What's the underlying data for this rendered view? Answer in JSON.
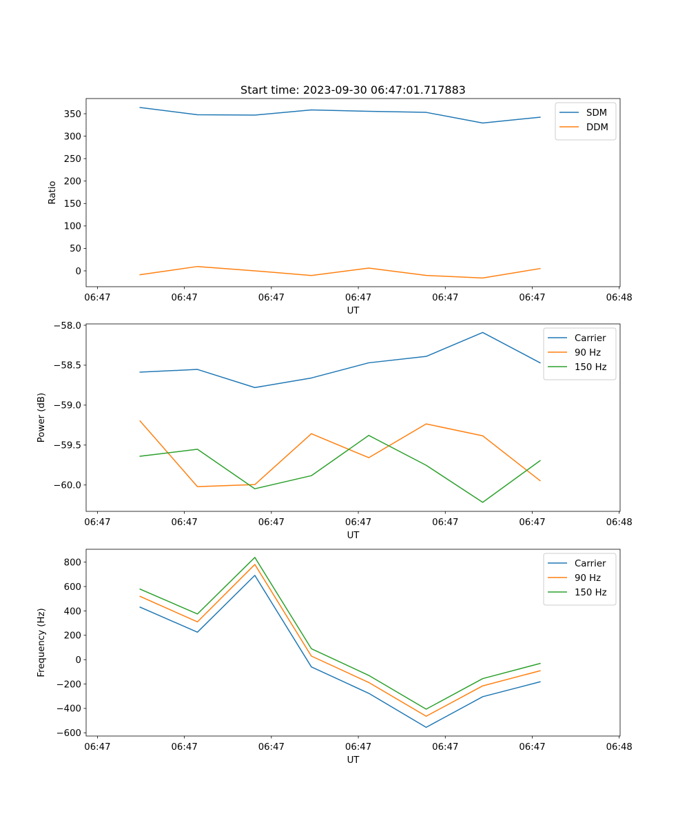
{
  "chart_data": [
    {
      "type": "line",
      "title": "Start time: 2023-09-30 06:47:01.717883",
      "xlabel": "UT",
      "ylabel": "Ratio",
      "x_unit": "seconds after 06:47:00",
      "x": [
        4.9,
        11.5,
        18.1,
        24.6,
        31.2,
        37.8,
        44.3,
        50.9
      ],
      "xlim": [
        -1.3,
        60.1
      ],
      "x_ticks": [
        0,
        10,
        20,
        30,
        40,
        50,
        60
      ],
      "x_tick_labels": [
        "06:47",
        "06:47",
        "06:47",
        "06:47",
        "06:47",
        "06:47",
        "06:48"
      ],
      "ylim": [
        -35.3,
        383.8
      ],
      "y_ticks": [
        0,
        50,
        100,
        150,
        200,
        250,
        300,
        350
      ],
      "y_tick_labels": [
        "0",
        "50",
        "100",
        "150",
        "200",
        "250",
        "300",
        "350"
      ],
      "grid": false,
      "legend": "top-right",
      "series": [
        {
          "name": "SDM",
          "color": "#1f77b4",
          "values": [
            363.8,
            347.7,
            347.0,
            358.5,
            355.4,
            353.0,
            329.3,
            342.3
          ]
        },
        {
          "name": "DDM",
          "color": "#ff7f0e",
          "values": [
            -8.7,
            9.7,
            0.0,
            -10.3,
            6.1,
            -10.2,
            -15.9,
            5.1
          ]
        }
      ]
    },
    {
      "type": "line",
      "title": "",
      "xlabel": "UT",
      "ylabel": "Power (dB)",
      "x_unit": "seconds after 06:47:00",
      "x": [
        4.9,
        11.5,
        18.1,
        24.6,
        31.2,
        37.8,
        44.3,
        50.9
      ],
      "xlim": [
        -1.3,
        60.1
      ],
      "x_ticks": [
        0,
        10,
        20,
        30,
        40,
        50,
        60
      ],
      "x_tick_labels": [
        "06:47",
        "06:47",
        "06:47",
        "06:47",
        "06:47",
        "06:47",
        "06:48"
      ],
      "ylim": [
        -60.33,
        -57.983
      ],
      "y_ticks": [
        -60.0,
        -59.5,
        -59.0,
        -58.5,
        -58.0
      ],
      "y_tick_labels": [
        "−60.0",
        "−59.5",
        "−59.0",
        "−58.5",
        "−58.0"
      ],
      "grid": false,
      "legend": "top-right",
      "series": [
        {
          "name": "Carrier",
          "color": "#1f77b4",
          "values": [
            -58.587,
            -58.553,
            -58.78,
            -58.66,
            -58.47,
            -58.39,
            -58.09,
            -58.47
          ]
        },
        {
          "name": "90 Hz",
          "color": "#ff7f0e",
          "values": [
            -59.198,
            -60.02,
            -59.995,
            -59.358,
            -59.658,
            -59.235,
            -59.384,
            -59.946
          ]
        },
        {
          "name": "150 Hz",
          "color": "#2ca02c",
          "values": [
            -59.64,
            -59.552,
            -60.047,
            -59.883,
            -59.379,
            -59.753,
            -60.217,
            -59.695
          ]
        }
      ]
    },
    {
      "type": "line",
      "title": "",
      "xlabel": "UT",
      "ylabel": "Frequency (Hz)",
      "x_unit": "seconds after 06:47:00",
      "x": [
        4.9,
        11.5,
        18.1,
        24.6,
        31.2,
        37.8,
        44.3,
        50.9
      ],
      "xlim": [
        -1.3,
        60.1
      ],
      "x_ticks": [
        0,
        10,
        20,
        30,
        40,
        50,
        60
      ],
      "x_tick_labels": [
        "06:47",
        "06:47",
        "06:47",
        "06:47",
        "06:47",
        "06:47",
        "06:48"
      ],
      "ylim": [
        -626.5,
        905.8
      ],
      "y_ticks": [
        -600,
        -400,
        -200,
        0,
        200,
        400,
        600,
        800
      ],
      "y_tick_labels": [
        "−600",
        "−400",
        "−200",
        "0",
        "200",
        "400",
        "600",
        "800"
      ],
      "grid": false,
      "legend": "top-right",
      "series": [
        {
          "name": "Carrier",
          "color": "#1f77b4",
          "values": [
            431,
            225.6,
            691.5,
            -59.4,
            -276,
            -555,
            -304,
            -181.5
          ]
        },
        {
          "name": "90 Hz",
          "color": "#ff7f0e",
          "values": [
            519.5,
            310,
            781,
            29.4,
            -187,
            -464,
            -215,
            -91
          ]
        },
        {
          "name": "150 Hz",
          "color": "#2ca02c",
          "values": [
            579,
            375,
            839,
            90,
            -129,
            -406,
            -155.5,
            -31
          ]
        }
      ]
    }
  ]
}
